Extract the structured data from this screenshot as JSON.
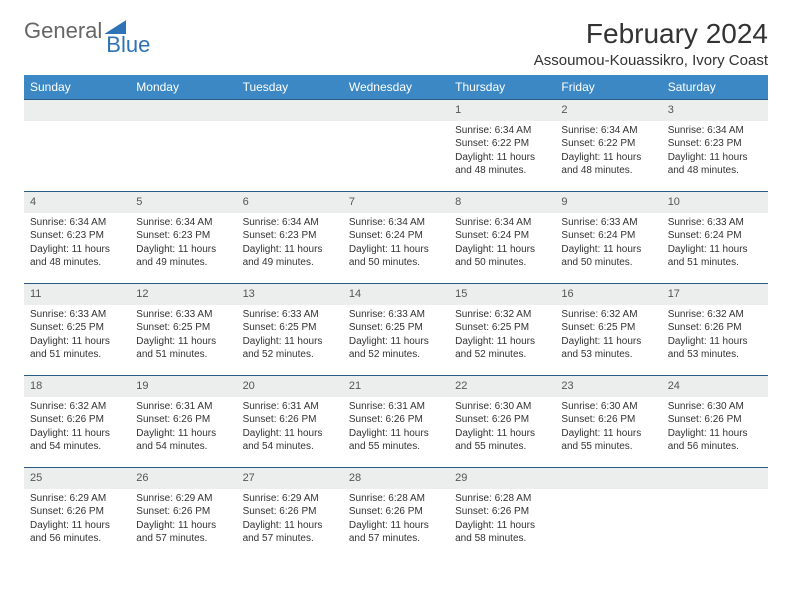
{
  "logo": {
    "part1": "General",
    "part2": "Blue"
  },
  "title": "February 2024",
  "location": "Assoumou-Kouassikro, Ivory Coast",
  "colors": {
    "header_bg": "#3b88c4",
    "header_text": "#ffffff",
    "daynum_bg": "#eceeee",
    "rule": "#2d5a85",
    "logo_blue": "#2d73b5"
  },
  "weekdays": [
    "Sunday",
    "Monday",
    "Tuesday",
    "Wednesday",
    "Thursday",
    "Friday",
    "Saturday"
  ],
  "weeks": [
    [
      null,
      null,
      null,
      null,
      {
        "n": "1",
        "sunrise": "6:34 AM",
        "sunset": "6:22 PM",
        "daylight": "11 hours and 48 minutes."
      },
      {
        "n": "2",
        "sunrise": "6:34 AM",
        "sunset": "6:22 PM",
        "daylight": "11 hours and 48 minutes."
      },
      {
        "n": "3",
        "sunrise": "6:34 AM",
        "sunset": "6:23 PM",
        "daylight": "11 hours and 48 minutes."
      }
    ],
    [
      {
        "n": "4",
        "sunrise": "6:34 AM",
        "sunset": "6:23 PM",
        "daylight": "11 hours and 48 minutes."
      },
      {
        "n": "5",
        "sunrise": "6:34 AM",
        "sunset": "6:23 PM",
        "daylight": "11 hours and 49 minutes."
      },
      {
        "n": "6",
        "sunrise": "6:34 AM",
        "sunset": "6:23 PM",
        "daylight": "11 hours and 49 minutes."
      },
      {
        "n": "7",
        "sunrise": "6:34 AM",
        "sunset": "6:24 PM",
        "daylight": "11 hours and 50 minutes."
      },
      {
        "n": "8",
        "sunrise": "6:34 AM",
        "sunset": "6:24 PM",
        "daylight": "11 hours and 50 minutes."
      },
      {
        "n": "9",
        "sunrise": "6:33 AM",
        "sunset": "6:24 PM",
        "daylight": "11 hours and 50 minutes."
      },
      {
        "n": "10",
        "sunrise": "6:33 AM",
        "sunset": "6:24 PM",
        "daylight": "11 hours and 51 minutes."
      }
    ],
    [
      {
        "n": "11",
        "sunrise": "6:33 AM",
        "sunset": "6:25 PM",
        "daylight": "11 hours and 51 minutes."
      },
      {
        "n": "12",
        "sunrise": "6:33 AM",
        "sunset": "6:25 PM",
        "daylight": "11 hours and 51 minutes."
      },
      {
        "n": "13",
        "sunrise": "6:33 AM",
        "sunset": "6:25 PM",
        "daylight": "11 hours and 52 minutes."
      },
      {
        "n": "14",
        "sunrise": "6:33 AM",
        "sunset": "6:25 PM",
        "daylight": "11 hours and 52 minutes."
      },
      {
        "n": "15",
        "sunrise": "6:32 AM",
        "sunset": "6:25 PM",
        "daylight": "11 hours and 52 minutes."
      },
      {
        "n": "16",
        "sunrise": "6:32 AM",
        "sunset": "6:25 PM",
        "daylight": "11 hours and 53 minutes."
      },
      {
        "n": "17",
        "sunrise": "6:32 AM",
        "sunset": "6:26 PM",
        "daylight": "11 hours and 53 minutes."
      }
    ],
    [
      {
        "n": "18",
        "sunrise": "6:32 AM",
        "sunset": "6:26 PM",
        "daylight": "11 hours and 54 minutes."
      },
      {
        "n": "19",
        "sunrise": "6:31 AM",
        "sunset": "6:26 PM",
        "daylight": "11 hours and 54 minutes."
      },
      {
        "n": "20",
        "sunrise": "6:31 AM",
        "sunset": "6:26 PM",
        "daylight": "11 hours and 54 minutes."
      },
      {
        "n": "21",
        "sunrise": "6:31 AM",
        "sunset": "6:26 PM",
        "daylight": "11 hours and 55 minutes."
      },
      {
        "n": "22",
        "sunrise": "6:30 AM",
        "sunset": "6:26 PM",
        "daylight": "11 hours and 55 minutes."
      },
      {
        "n": "23",
        "sunrise": "6:30 AM",
        "sunset": "6:26 PM",
        "daylight": "11 hours and 55 minutes."
      },
      {
        "n": "24",
        "sunrise": "6:30 AM",
        "sunset": "6:26 PM",
        "daylight": "11 hours and 56 minutes."
      }
    ],
    [
      {
        "n": "25",
        "sunrise": "6:29 AM",
        "sunset": "6:26 PM",
        "daylight": "11 hours and 56 minutes."
      },
      {
        "n": "26",
        "sunrise": "6:29 AM",
        "sunset": "6:26 PM",
        "daylight": "11 hours and 57 minutes."
      },
      {
        "n": "27",
        "sunrise": "6:29 AM",
        "sunset": "6:26 PM",
        "daylight": "11 hours and 57 minutes."
      },
      {
        "n": "28",
        "sunrise": "6:28 AM",
        "sunset": "6:26 PM",
        "daylight": "11 hours and 57 minutes."
      },
      {
        "n": "29",
        "sunrise": "6:28 AM",
        "sunset": "6:26 PM",
        "daylight": "11 hours and 58 minutes."
      },
      null,
      null
    ]
  ],
  "labels": {
    "sunrise": "Sunrise:",
    "sunset": "Sunset:",
    "daylight": "Daylight:"
  }
}
